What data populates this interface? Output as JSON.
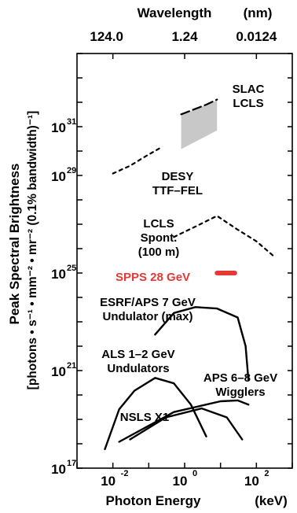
{
  "chart_data": {
    "type": "line",
    "title": "",
    "top_axis": {
      "label": "Wavelength",
      "unit": "(nm)",
      "ticks": [
        "124.0",
        "1.24",
        "0.0124"
      ],
      "tick_energy_keV": [
        0.01,
        1,
        100
      ]
    },
    "xlabel": "Photon Energy",
    "xunit": "(keV)",
    "x_scale": "log",
    "xlim": [
      0.001,
      1000
    ],
    "xticks": [
      {
        "base": "10",
        "exp": "-2",
        "value": 0.01
      },
      {
        "base": "10",
        "exp": "0",
        "value": 1
      },
      {
        "base": "10",
        "exp": "2",
        "value": 100
      }
    ],
    "ylabel": "Peak Spectral Brightness",
    "yunit": "[photons • s⁻¹ • mm⁻² • mr⁻² (0.1% bandwidth)⁻¹]",
    "y_scale": "log",
    "ylim": [
      1e+17,
      1e+34
    ],
    "yticks": [
      {
        "base": "10",
        "exp": "17",
        "value": 1e+17
      },
      {
        "base": "10",
        "exp": "21",
        "value": 1e+21
      },
      {
        "base": "10",
        "exp": "25",
        "value": 1e+25
      },
      {
        "base": "10",
        "exp": "29",
        "value": 1e+29
      },
      {
        "base": "10",
        "exp": "31",
        "value": 1e+31
      }
    ],
    "grid": false,
    "series": [
      {
        "name": "SLAC LCLS",
        "style": "dashed",
        "color": "#000000",
        "points": [
          [
            0.8,
            3.2e+31
          ],
          [
            4.0,
            8e+31
          ],
          [
            8.0,
            1.3e+32
          ]
        ],
        "band": {
          "color": "#c8c8c8",
          "x": [
            0.8,
            8.0
          ],
          "upper": [
            3e+31,
            1.2e+32
          ],
          "lower": [
            1.2e+30,
            7e+30
          ]
        }
      },
      {
        "name": "DESY TTF-FEL",
        "style": "dotted",
        "color": "#000000",
        "points": [
          [
            0.01,
            1.2e+29
          ],
          [
            0.03,
            2.5e+29
          ],
          [
            0.08,
            6e+29
          ],
          [
            0.2,
            1.3e+30
          ]
        ]
      },
      {
        "name": "LCLS Spont. (100 m)",
        "style": "dotted",
        "color": "#000000",
        "points": [
          [
            0.5,
            3e+26
          ],
          [
            2.0,
            8e+26
          ],
          [
            8.0,
            2.2e+27
          ],
          [
            30.0,
            6e+26
          ],
          [
            100.0,
            2e+26
          ],
          [
            300.0,
            5e+25
          ]
        ]
      },
      {
        "name": "SPPS 28 GeV",
        "style": "band",
        "color": "#e53935",
        "points": [
          [
            8.0,
            1e+25
          ],
          [
            25.0,
            1e+25
          ]
        ]
      },
      {
        "name": "ESRF/APS 7 GeV Undulator (max)",
        "style": "solid",
        "color": "#000000",
        "points": [
          [
            0.15,
            3e+22
          ],
          [
            0.5,
            2.3e+23
          ],
          [
            2.0,
            4e+23
          ],
          [
            8.0,
            3.5e+23
          ],
          [
            30.0,
            1.5e+23
          ],
          [
            50.0,
            1e+22
          ],
          [
            60.0,
            4e+20
          ]
        ]
      },
      {
        "name": "ALS 1-2 GeV Undulators",
        "style": "solid",
        "color": "#000000",
        "points": [
          [
            0.006,
            6e+17
          ],
          [
            0.015,
            2.6e+19
          ],
          [
            0.04,
            1.5e+20
          ],
          [
            0.15,
            5e+20
          ],
          [
            0.5,
            3e+20
          ],
          [
            1.5,
            4e+19
          ],
          [
            4.0,
            2e+18
          ]
        ]
      },
      {
        "name": "APS 6-8 GeV Wigglers",
        "style": "solid",
        "color": "#000000",
        "points": [
          [
            0.015,
            1.2e+18
          ],
          [
            0.5,
            2e+19
          ],
          [
            10.0,
            5.5e+19
          ],
          [
            30.0,
            6e+19
          ],
          [
            60.0,
            4e+19
          ]
        ]
      },
      {
        "name": "NSLS X1",
        "style": "solid",
        "color": "#000000",
        "points": [
          [
            0.03,
            1.5e+18
          ],
          [
            0.3,
            1.2e+19
          ],
          [
            3.0,
            2.8e+19
          ],
          [
            15.0,
            1.2e+19
          ],
          [
            40.0,
            1.5e+18
          ]
        ]
      }
    ],
    "annotations": [
      {
        "lines": [
          "SLAC",
          "LCLS"
        ],
        "color": "#000000"
      },
      {
        "lines": [
          "DESY",
          "TTF–FEL"
        ],
        "color": "#000000"
      },
      {
        "lines": [
          "LCLS",
          "Spont.",
          "(100 m)"
        ],
        "color": "#000000"
      },
      {
        "lines": [
          "SPPS 28 GeV"
        ],
        "color": "#e53935"
      },
      {
        "lines": [
          "ESRF/APS 7 GeV",
          "Undulator (max)"
        ],
        "color": "#000000"
      },
      {
        "lines": [
          "ALS 1–2 GeV",
          "Undulators"
        ],
        "color": "#000000"
      },
      {
        "lines": [
          "APS 6–8 GeV",
          "Wigglers"
        ],
        "color": "#000000"
      },
      {
        "lines": [
          "NSLS X1"
        ],
        "color": "#000000"
      }
    ]
  }
}
